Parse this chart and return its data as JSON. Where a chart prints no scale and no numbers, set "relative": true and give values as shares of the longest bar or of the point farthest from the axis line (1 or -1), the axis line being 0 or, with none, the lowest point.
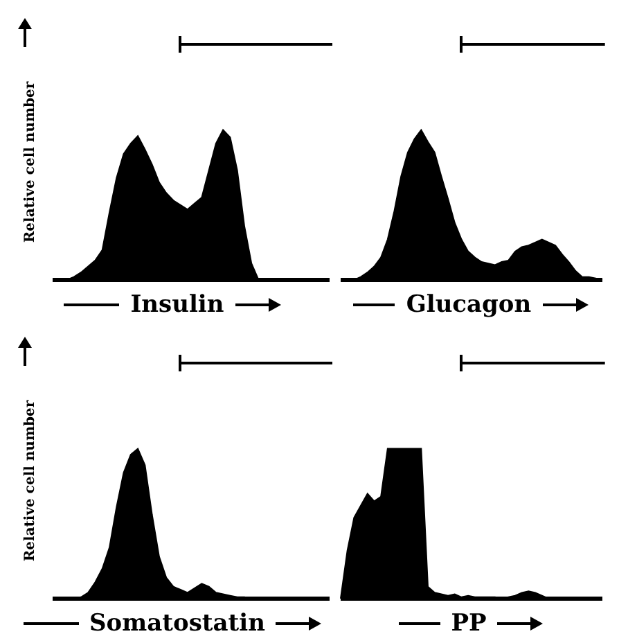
{
  "chart_data": [
    {
      "type": "area",
      "relative": true,
      "ylabel": "Relative cell number",
      "xlabel": "Insulin",
      "color": "#000000",
      "categories": [
        null,
        null,
        null,
        null,
        null,
        null,
        null,
        null,
        null,
        null,
        null,
        null,
        null,
        null,
        null,
        null,
        null,
        null,
        null,
        null,
        null,
        null,
        null,
        null,
        null,
        null,
        null,
        null,
        null,
        null,
        null,
        null,
        null,
        null,
        null,
        null,
        null,
        null,
        null,
        null
      ],
      "values": [
        0,
        0,
        0,
        0.02,
        0.05,
        0.09,
        0.13,
        0.2,
        0.45,
        0.68,
        0.84,
        0.91,
        0.96,
        0.87,
        0.77,
        0.65,
        0.58,
        0.53,
        0.5,
        0.47,
        0.51,
        0.55,
        0.73,
        0.91,
        1,
        0.95,
        0.73,
        0.36,
        0.11,
        0,
        0,
        0,
        0,
        0,
        0,
        0,
        0,
        0,
        0,
        0
      ]
    },
    {
      "type": "area",
      "relative": true,
      "xlabel": "Glucagon",
      "color": "#000000",
      "categories": [
        null,
        null,
        null,
        null,
        null,
        null,
        null,
        null,
        null,
        null,
        null,
        null,
        null,
        null,
        null,
        null,
        null,
        null,
        null,
        null,
        null,
        null,
        null,
        null,
        null,
        null,
        null,
        null,
        null,
        null,
        null,
        null,
        null,
        null,
        null,
        null,
        null,
        null,
        null,
        null
      ],
      "values": [
        0,
        0,
        0,
        0.02,
        0.05,
        0.09,
        0.15,
        0.27,
        0.46,
        0.69,
        0.85,
        0.94,
        1,
        0.92,
        0.85,
        0.69,
        0.54,
        0.38,
        0.27,
        0.19,
        0.15,
        0.12,
        0.11,
        0.1,
        0.12,
        0.13,
        0.19,
        0.22,
        0.23,
        0.25,
        0.27,
        0.25,
        0.23,
        0.17,
        0.12,
        0.06,
        0.02,
        0.02,
        0.01,
        0
      ]
    },
    {
      "type": "area",
      "relative": true,
      "ylabel": "Relative cell number",
      "xlabel": "Somatostatin",
      "color": "#000000",
      "categories": [
        null,
        null,
        null,
        null,
        null,
        null,
        null,
        null,
        null,
        null,
        null,
        null,
        null,
        null,
        null,
        null,
        null,
        null,
        null,
        null,
        null,
        null,
        null,
        null,
        null,
        null,
        null,
        null,
        null,
        null,
        null,
        null,
        null,
        null,
        null,
        null,
        null,
        null,
        null,
        null
      ],
      "values": [
        0,
        0,
        0,
        0,
        0.01,
        0.04,
        0.11,
        0.2,
        0.34,
        0.61,
        0.84,
        0.96,
        1,
        0.89,
        0.56,
        0.28,
        0.14,
        0.08,
        0.06,
        0.04,
        0.07,
        0.1,
        0.08,
        0.04,
        0.03,
        0.02,
        0.01,
        0.01,
        0,
        0,
        0,
        0,
        0,
        0,
        0,
        0,
        0,
        0,
        0,
        0
      ]
    },
    {
      "type": "area",
      "relative": true,
      "xlabel": "PP",
      "color": "#000000",
      "categories": [
        null,
        null,
        null,
        null,
        null,
        null,
        null,
        null,
        null,
        null,
        null,
        null,
        null,
        null,
        null,
        null,
        null,
        null,
        null,
        null,
        null,
        null,
        null,
        null,
        null,
        null,
        null,
        null,
        null,
        null,
        null,
        null,
        null,
        null,
        null,
        null,
        null,
        null,
        null,
        null
      ],
      "values": [
        0,
        0.32,
        0.54,
        0.62,
        0.7,
        0.65,
        0.68,
        1,
        1,
        1,
        1,
        1,
        1,
        0.08,
        0.04,
        0.03,
        0.02,
        0.03,
        0.01,
        0.02,
        0.01,
        0.01,
        0.01,
        0.01,
        0,
        0.01,
        0.02,
        0.04,
        0.05,
        0.04,
        0.02,
        0,
        0,
        0,
        0,
        0,
        0,
        0,
        0,
        0
      ]
    }
  ]
}
